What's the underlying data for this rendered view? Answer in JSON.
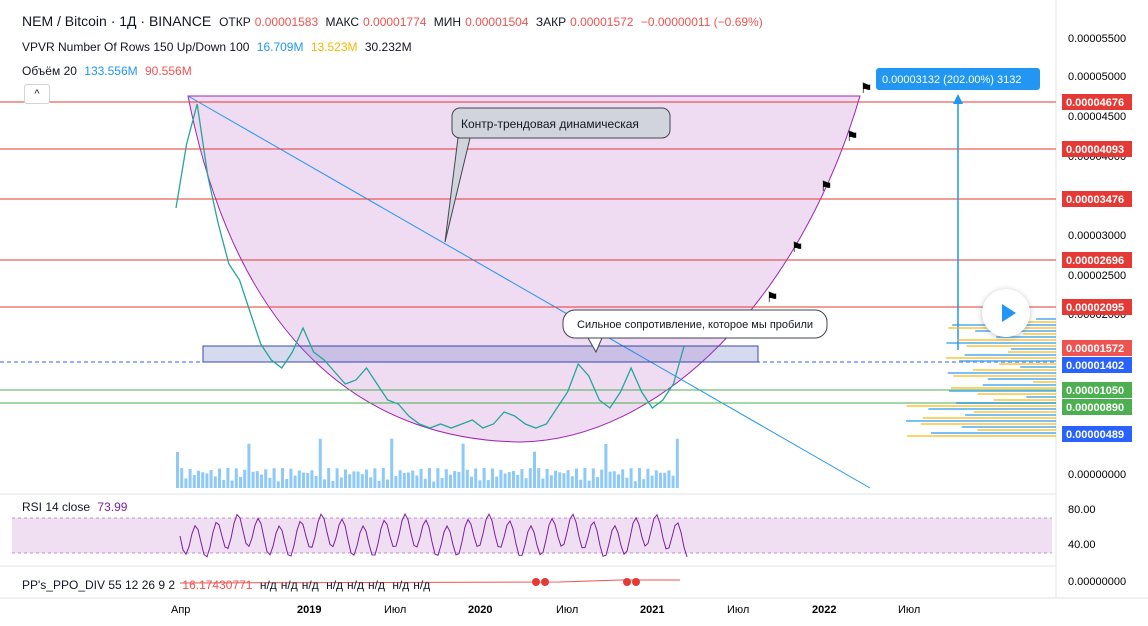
{
  "header": {
    "title": "NEM / Bitcoin · 1Д · BINANCE",
    "open_label": "ОТКР",
    "open": "0.00001583",
    "high_label": "МАКС",
    "high": "0.00001774",
    "low_label": "МИН",
    "low": "0.00001504",
    "close_label": "ЗАКР",
    "close": "0.00001572",
    "change": "−0.00000011 (−0.69%)"
  },
  "vpvr": {
    "label": "VPVR Number Of Rows 150 Up/Down 100",
    "up": "16.709M",
    "down": "13.523M",
    "total": "30.232M"
  },
  "volume": {
    "label": "Объём 20",
    "v1": "133.556M",
    "v2": "90.556M"
  },
  "rsi": {
    "label": "RSI 14 close",
    "value": "73.99",
    "ticks": [
      "80.00",
      "40.00"
    ]
  },
  "ppo": {
    "label": "PP's_PPO_DIV 55 12 26 9 2",
    "value": "16.17430771",
    "na": "н/д",
    "axis": "0.00000000"
  },
  "price_axis": [
    "0.00005500",
    "0.00005000",
    "0.00004500",
    "0.00004000",
    "0.00003000",
    "0.00002500",
    "0.00002000",
    "0.00000000"
  ],
  "time_axis": [
    "Апр",
    "2019",
    "Июл",
    "2020",
    "Июл",
    "2021",
    "Июл",
    "2022",
    "Июл"
  ],
  "colors": {
    "up": "#26a69a",
    "down": "#ef5350",
    "resistance": "#e53935",
    "support": "#4caf50",
    "trend": "#2196f3",
    "bowl": "#e1bee7",
    "bowl_line": "#9c27b0"
  },
  "chart_data": {
    "type": "line",
    "resistance_levels": [
      "0.00004676",
      "0.00004093",
      "0.00003476",
      "0.00002696",
      "0.00002095"
    ],
    "support_levels": [
      "0.00001050",
      "0.00000890"
    ],
    "current_price": "0.00001572",
    "zone_price": "0.00001402",
    "low_price": "0.00000489",
    "measure": "0.00003132 (202.00%) 3132",
    "annotations": [
      "Контр-трендовая динамическая",
      "Сильное сопротивление, которое мы пробили"
    ],
    "series": [
      {
        "values": [
          3.3,
          4.1,
          4.6,
          3.7,
          3.1,
          2.6,
          2.4,
          2.0,
          1.6,
          1.4,
          1.3,
          1.5,
          1.8,
          1.5,
          1.4,
          1.25,
          1.1,
          1.15,
          1.3,
          1.1,
          0.9,
          0.85,
          0.7,
          0.6,
          0.55,
          0.6,
          0.55,
          0.6,
          0.65,
          0.55,
          0.6,
          0.75,
          0.7,
          0.6,
          0.55,
          0.6,
          0.8,
          1.0,
          1.35,
          1.2,
          0.9,
          0.8,
          1.0,
          1.3,
          1.0,
          0.8,
          0.9,
          1.1,
          1.57
        ]
      }
    ]
  }
}
